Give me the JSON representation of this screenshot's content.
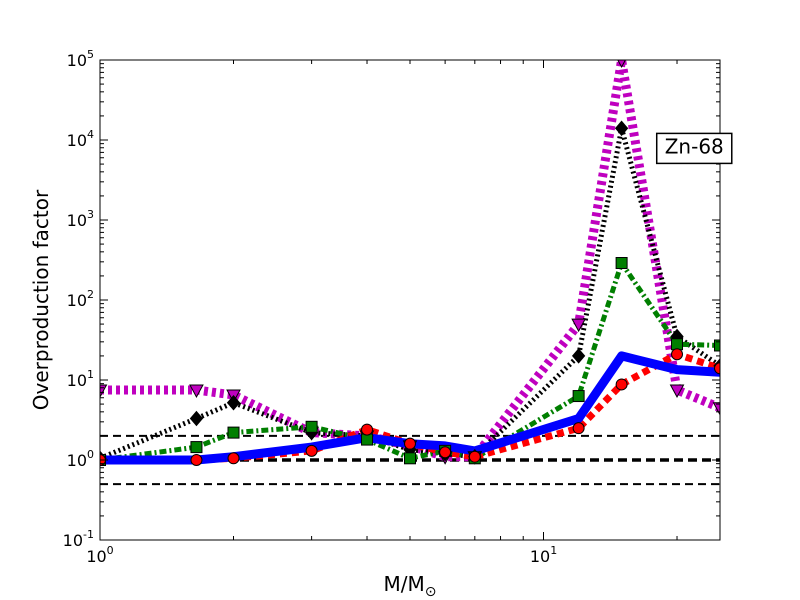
{
  "chart_data": {
    "type": "line",
    "xlabel": "M/M",
    "xlabel_sub": "⊙",
    "ylabel": "Overproduction factor",
    "xscale": "log",
    "yscale": "log",
    "xlim": [
      1,
      25
    ],
    "ylim": [
      0.1,
      100000
    ],
    "grid": false,
    "x_ticks": [
      {
        "value": 1,
        "base": "10",
        "exp": "0"
      },
      {
        "value": 10,
        "base": "10",
        "exp": "1"
      }
    ],
    "y_ticks": [
      {
        "value": 0.1,
        "base": "10",
        "exp": "-1"
      },
      {
        "value": 1,
        "base": "10",
        "exp": "0"
      },
      {
        "value": 10,
        "base": "10",
        "exp": "1"
      },
      {
        "value": 100,
        "base": "10",
        "exp": "2"
      },
      {
        "value": 1000,
        "base": "10",
        "exp": "3"
      },
      {
        "value": 10000,
        "base": "10",
        "exp": "4"
      },
      {
        "value": 100000,
        "base": "10",
        "exp": "5"
      }
    ],
    "reference_lines": [
      {
        "y": 2,
        "color": "#000000",
        "width": 2,
        "dash": "8,5"
      },
      {
        "y": 1,
        "color": "#000000",
        "width": 3.5,
        "dash": "9,5"
      },
      {
        "y": 0.5,
        "color": "#000000",
        "width": 2,
        "dash": "8,5"
      }
    ],
    "annotation": {
      "text": "Zn-68",
      "x": 18,
      "y": 6800
    },
    "series": [
      {
        "color": "#bf00bf",
        "width": 9,
        "dash": "4,4",
        "marker": "triangle-down",
        "x": [
          1,
          1.65,
          2,
          3,
          4,
          5,
          6,
          7,
          12,
          15,
          20,
          25
        ],
        "y": [
          7.5,
          7.5,
          6.5,
          2.2,
          2,
          1.5,
          1.1,
          1.1,
          50,
          100000,
          7.5,
          4.5
        ]
      },
      {
        "color": "#000000",
        "width": 5,
        "dash": "2,3",
        "marker": "diamond",
        "x": [
          1,
          1.65,
          2,
          3,
          4,
          5,
          6,
          7,
          12,
          15,
          20,
          25
        ],
        "y": [
          1.05,
          3.3,
          5.2,
          2.2,
          2,
          1.35,
          1.2,
          1.1,
          20,
          14000,
          35,
          15
        ]
      },
      {
        "color": "#007f00",
        "width": 5,
        "dash": "7,3,2,3",
        "marker": "square",
        "x": [
          1,
          1.65,
          2,
          3,
          4,
          5,
          6,
          7,
          12,
          15,
          20,
          25
        ],
        "y": [
          1,
          1.45,
          2.2,
          2.6,
          1.8,
          1.05,
          1.3,
          1.05,
          6.3,
          290,
          28,
          27
        ]
      },
      {
        "color": "#ff0000",
        "width": 7,
        "dash": "7,5",
        "marker": "circle",
        "x": [
          1,
          1.65,
          2,
          3,
          4,
          5,
          6,
          7,
          12,
          15,
          20,
          25
        ],
        "y": [
          1,
          1,
          1.05,
          1.3,
          2.4,
          1.6,
          1.25,
          1.1,
          2.5,
          8.8,
          21,
          14
        ]
      },
      {
        "color": "#0000ff",
        "width": 9,
        "dash": "",
        "marker": "none",
        "x": [
          1,
          1.65,
          2,
          3,
          4,
          5,
          6,
          7,
          12,
          15,
          20,
          25
        ],
        "y": [
          1,
          1,
          1.1,
          1.45,
          1.9,
          1.6,
          1.5,
          1.3,
          3.3,
          20,
          13.5,
          12.5
        ]
      }
    ]
  }
}
